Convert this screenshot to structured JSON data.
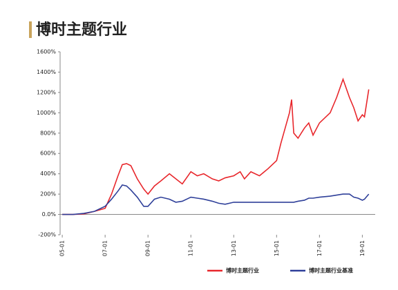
{
  "chart_data": {
    "type": "line",
    "title": "博时主题行业",
    "x": [
      5.0,
      5.5,
      6.0,
      6.5,
      7.0,
      7.3,
      7.6,
      7.8,
      8.0,
      8.2,
      8.5,
      8.8,
      9.0,
      9.3,
      9.6,
      10.0,
      10.3,
      10.6,
      11.0,
      11.3,
      11.6,
      12.0,
      12.3,
      12.6,
      13.0,
      13.3,
      13.5,
      13.8,
      14.2,
      14.6,
      15.0,
      15.2,
      15.4,
      15.6,
      15.7,
      15.8,
      16.0,
      16.3,
      16.5,
      16.7,
      17.0,
      17.5,
      17.8,
      18.1,
      18.4,
      18.6,
      18.8,
      19.0,
      19.1,
      19.3
    ],
    "series": [
      {
        "name": "博时主题行业",
        "color": "#e8262b",
        "values": [
          0,
          0,
          5,
          30,
          60,
          200,
          380,
          490,
          500,
          480,
          350,
          250,
          200,
          280,
          330,
          400,
          350,
          300,
          420,
          380,
          400,
          350,
          330,
          360,
          380,
          420,
          350,
          420,
          380,
          450,
          530,
          700,
          850,
          1000,
          1130,
          800,
          750,
          850,
          900,
          780,
          900,
          1000,
          1150,
          1330,
          1150,
          1050,
          920,
          980,
          960,
          1230
        ]
      },
      {
        "name": "博时主题行业基准",
        "color": "#2e3f99",
        "values": [
          0,
          0,
          10,
          30,
          80,
          150,
          230,
          290,
          280,
          240,
          170,
          80,
          80,
          150,
          170,
          150,
          120,
          130,
          170,
          160,
          150,
          130,
          110,
          100,
          120,
          120,
          120,
          120,
          120,
          120,
          120,
          120,
          120,
          120,
          120,
          120,
          130,
          140,
          160,
          160,
          170,
          180,
          190,
          200,
          200,
          170,
          160,
          140,
          150,
          200
        ]
      }
    ],
    "xlim": [
      4.9,
      19.6
    ],
    "xticks": [
      {
        "value": 5,
        "label": "05-01"
      },
      {
        "value": 7,
        "label": "07-01"
      },
      {
        "value": 9,
        "label": "09-01"
      },
      {
        "value": 11,
        "label": "11-01"
      },
      {
        "value": 13,
        "label": "13-01"
      },
      {
        "value": 15,
        "label": "15-01"
      },
      {
        "value": 17,
        "label": "17-01"
      },
      {
        "value": 19,
        "label": "19-01"
      }
    ],
    "ylim": [
      -200,
      1600
    ],
    "yticks": [
      {
        "value": -200,
        "label": "-200%"
      },
      {
        "value": 0,
        "label": "0.0%"
      },
      {
        "value": 200,
        "label": "200%"
      },
      {
        "value": 400,
        "label": "400%"
      },
      {
        "value": 600,
        "label": "600%"
      },
      {
        "value": 800,
        "label": "800%"
      },
      {
        "value": 1000,
        "label": "1000%"
      },
      {
        "value": 1200,
        "label": "1200%"
      },
      {
        "value": 1400,
        "label": "1400%"
      },
      {
        "value": 1600,
        "label": "1600%"
      }
    ]
  }
}
